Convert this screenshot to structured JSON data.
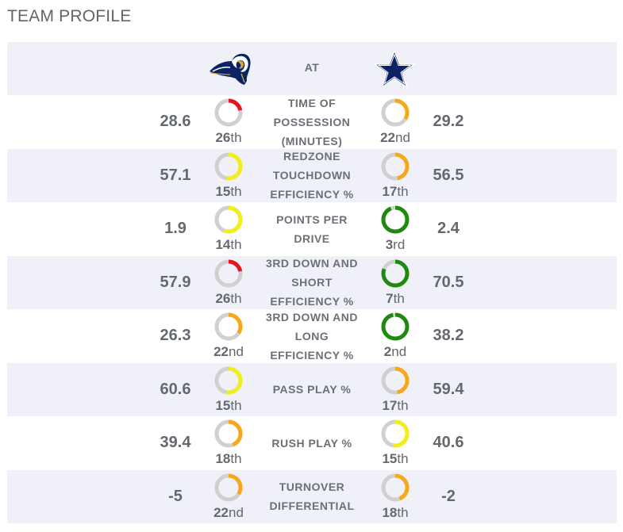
{
  "title": "TEAM PROFILE",
  "header": {
    "at_label": "AT",
    "home_logo_icon": "rams-logo-icon",
    "away_logo_icon": "cowboys-star-logo-icon"
  },
  "colors": {
    "ring_track": "#d0d0d0",
    "red": "#e5141f",
    "yellow": "#f2ee1a",
    "orange": "#f5a81c",
    "green": "#1f8a0f",
    "row_shade": "#eff0f8"
  },
  "rows": [
    {
      "label": "TIME OF POSSESSION (MINUTES)",
      "home_value": "28.6",
      "home_rank": "26",
      "home_suffix": "th",
      "home_color": "#e5141f",
      "home_fill": 0.22,
      "away_value": "29.2",
      "away_rank": "22",
      "away_suffix": "nd",
      "away_color": "#f5a81c",
      "away_fill": 0.34
    },
    {
      "label": "REDZONE TOUCHDOWN EFFICIENCY %",
      "home_value": "57.1",
      "home_rank": "15",
      "home_suffix": "th",
      "home_color": "#f2ee1a",
      "home_fill": 0.53,
      "away_value": "56.5",
      "away_rank": "17",
      "away_suffix": "th",
      "away_color": "#f5a81c",
      "away_fill": 0.47
    },
    {
      "label": "POINTS PER DRIVE",
      "home_value": "1.9",
      "home_rank": "14",
      "home_suffix": "th",
      "home_color": "#f2ee1a",
      "home_fill": 0.56,
      "away_value": "2.4",
      "away_rank": "3",
      "away_suffix": "rd",
      "away_color": "#1f8a0f",
      "away_fill": 0.94
    },
    {
      "label": "3RD DOWN AND SHORT EFFICIENCY %",
      "home_value": "57.9",
      "home_rank": "26",
      "home_suffix": "th",
      "home_color": "#e5141f",
      "home_fill": 0.22,
      "away_value": "70.5",
      "away_rank": "7",
      "away_suffix": "th",
      "away_color": "#1f8a0f",
      "away_fill": 0.81
    },
    {
      "label": "3RD DOWN AND LONG EFFICIENCY %",
      "home_value": "26.3",
      "home_rank": "22",
      "home_suffix": "nd",
      "home_color": "#f5a81c",
      "home_fill": 0.34,
      "away_value": "38.2",
      "away_rank": "2",
      "away_suffix": "nd",
      "away_color": "#1f8a0f",
      "away_fill": 0.97
    },
    {
      "label": "PASS PLAY %",
      "home_value": "60.6",
      "home_rank": "15",
      "home_suffix": "th",
      "home_color": "#f2ee1a",
      "home_fill": 0.53,
      "away_value": "59.4",
      "away_rank": "17",
      "away_suffix": "th",
      "away_color": "#f5a81c",
      "away_fill": 0.47
    },
    {
      "label": "RUSH PLAY %",
      "home_value": "39.4",
      "home_rank": "18",
      "home_suffix": "th",
      "home_color": "#f5a81c",
      "home_fill": 0.44,
      "away_value": "40.6",
      "away_rank": "15",
      "away_suffix": "th",
      "away_color": "#f2ee1a",
      "away_fill": 0.53
    },
    {
      "label": "TURNOVER DIFFERENTIAL",
      "home_value": "-5",
      "home_rank": "22",
      "home_suffix": "nd",
      "home_color": "#f5a81c",
      "home_fill": 0.34,
      "away_value": "-2",
      "away_rank": "18",
      "away_suffix": "th",
      "away_color": "#f5a81c",
      "away_fill": 0.44
    }
  ]
}
